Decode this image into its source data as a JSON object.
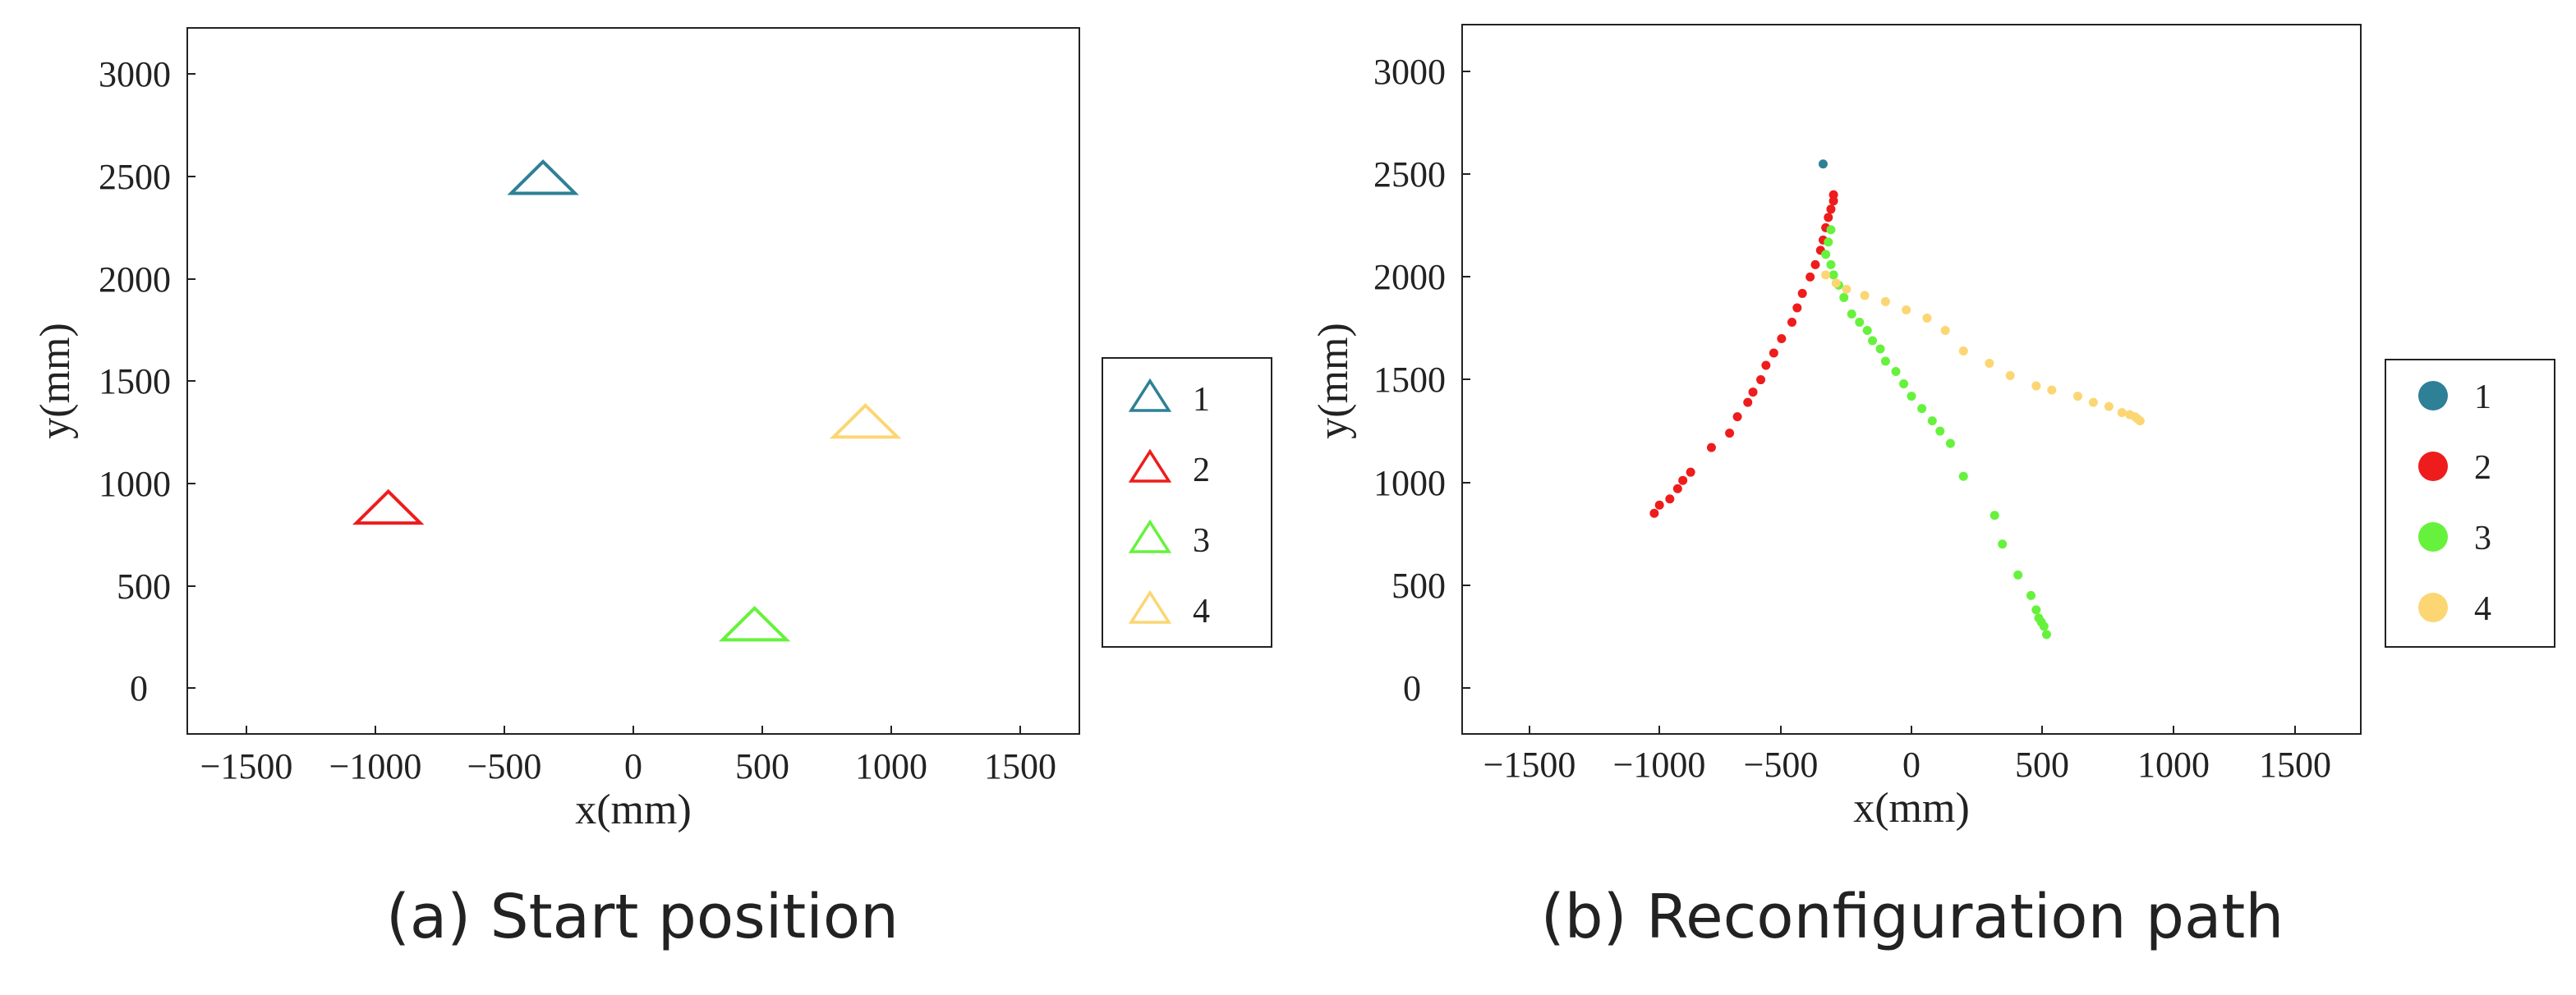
{
  "chart_data": [
    {
      "type": "scatter",
      "marker": "triangle",
      "title": "(a) Start position",
      "xlabel": "x(mm)",
      "ylabel": "y(mm)",
      "xlim": [
        -1730,
        1730
      ],
      "ylim": [
        -220,
        3230
      ],
      "xticks": [
        -1500,
        -1000,
        -500,
        0,
        500,
        1000,
        1500
      ],
      "yticks": [
        0,
        500,
        1000,
        1500,
        2000,
        2500,
        3000
      ],
      "legend_position": "right",
      "series": [
        {
          "name": "1",
          "color": "#2e8096",
          "points": [
            [
              -350,
              2480
            ]
          ]
        },
        {
          "name": "2",
          "color": "#ee1c1c",
          "points": [
            [
              -950,
              870
            ]
          ]
        },
        {
          "name": "3",
          "color": "#66f23c",
          "points": [
            [
              470,
              300
            ]
          ]
        },
        {
          "name": "4",
          "color": "#fbd673",
          "points": [
            [
              900,
              1290
            ]
          ]
        }
      ]
    },
    {
      "type": "scatter",
      "marker": "dot",
      "title": "(b) Reconfiguration path",
      "xlabel": "x(mm)",
      "ylabel": "y(mm)",
      "xlim": [
        -1730,
        1730
      ],
      "ylim": [
        -220,
        3230
      ],
      "xticks": [
        -1500,
        -1000,
        -500,
        0,
        500,
        1000,
        1500
      ],
      "yticks": [
        0,
        500,
        1000,
        1500,
        2000,
        2500,
        3000
      ],
      "legend_position": "right",
      "series": [
        {
          "name": "1",
          "color": "#2e8096",
          "points": [
            [
              -340,
              2550
            ]
          ]
        },
        {
          "name": "2",
          "color": "#ee1c1c",
          "points": [
            [
              -990,
              850
            ],
            [
              -970,
              890
            ],
            [
              -930,
              920
            ],
            [
              -900,
              970
            ],
            [
              -880,
              1010
            ],
            [
              -850,
              1050
            ],
            [
              -770,
              1170
            ],
            [
              -700,
              1240
            ],
            [
              -670,
              1320
            ],
            [
              -630,
              1390
            ],
            [
              -610,
              1440
            ],
            [
              -580,
              1500
            ],
            [
              -560,
              1570
            ],
            [
              -530,
              1630
            ],
            [
              -500,
              1700
            ],
            [
              -460,
              1780
            ],
            [
              -440,
              1850
            ],
            [
              -420,
              1920
            ],
            [
              -390,
              2000
            ],
            [
              -370,
              2060
            ],
            [
              -350,
              2130
            ],
            [
              -340,
              2180
            ],
            [
              -330,
              2240
            ],
            [
              -320,
              2290
            ],
            [
              -310,
              2330
            ],
            [
              -300,
              2370
            ],
            [
              -300,
              2400
            ]
          ]
        },
        {
          "name": "3",
          "color": "#66f23c",
          "points": [
            [
              -310,
              2230
            ],
            [
              -320,
              2170
            ],
            [
              -330,
              2110
            ],
            [
              -310,
              2060
            ],
            [
              -300,
              2010
            ],
            [
              -280,
              1960
            ],
            [
              -260,
              1900
            ],
            [
              -230,
              1820
            ],
            [
              -200,
              1780
            ],
            [
              -170,
              1740
            ],
            [
              -150,
              1690
            ],
            [
              -120,
              1650
            ],
            [
              -100,
              1590
            ],
            [
              -60,
              1540
            ],
            [
              -30,
              1480
            ],
            [
              0,
              1420
            ],
            [
              40,
              1360
            ],
            [
              80,
              1300
            ],
            [
              110,
              1250
            ],
            [
              150,
              1190
            ],
            [
              200,
              1030
            ],
            [
              320,
              840
            ],
            [
              350,
              700
            ],
            [
              410,
              550
            ],
            [
              460,
              450
            ],
            [
              480,
              380
            ],
            [
              490,
              340
            ],
            [
              500,
              320
            ],
            [
              510,
              300
            ],
            [
              520,
              260
            ]
          ]
        },
        {
          "name": "4",
          "color": "#fbd673",
          "points": [
            [
              -330,
              2010
            ],
            [
              -290,
              1970
            ],
            [
              -250,
              1940
            ],
            [
              -180,
              1910
            ],
            [
              -100,
              1880
            ],
            [
              -20,
              1840
            ],
            [
              60,
              1800
            ],
            [
              130,
              1740
            ],
            [
              200,
              1640
            ],
            [
              300,
              1580
            ],
            [
              380,
              1520
            ],
            [
              480,
              1470
            ],
            [
              540,
              1450
            ],
            [
              640,
              1420
            ],
            [
              700,
              1390
            ],
            [
              760,
              1370
            ],
            [
              810,
              1340
            ],
            [
              840,
              1330
            ],
            [
              860,
              1320
            ],
            [
              870,
              1310
            ],
            [
              880,
              1300
            ]
          ]
        }
      ]
    }
  ],
  "panels": [
    {
      "xtick_labels": [
        "−1500",
        "−1000",
        "−500",
        "0",
        "500",
        "1000",
        "1500"
      ],
      "ytick_labels": [
        "0",
        "500",
        "1000",
        "1500",
        "2000",
        "2500",
        "3000"
      ],
      "xlabel": "x(mm)",
      "ylabel": "y(mm)",
      "caption": "(a) Start position",
      "legend": [
        "1",
        "2",
        "3",
        "4"
      ]
    },
    {
      "xtick_labels": [
        "−1500",
        "−1000",
        "−500",
        "0",
        "500",
        "1000",
        "1500"
      ],
      "ytick_labels": [
        "0",
        "500",
        "1000",
        "1500",
        "2000",
        "2500",
        "3000"
      ],
      "xlabel": "x(mm)",
      "ylabel": "y(mm)",
      "caption": "(b) Reconfiguration path",
      "legend": [
        "1",
        "2",
        "3",
        "4"
      ]
    }
  ]
}
